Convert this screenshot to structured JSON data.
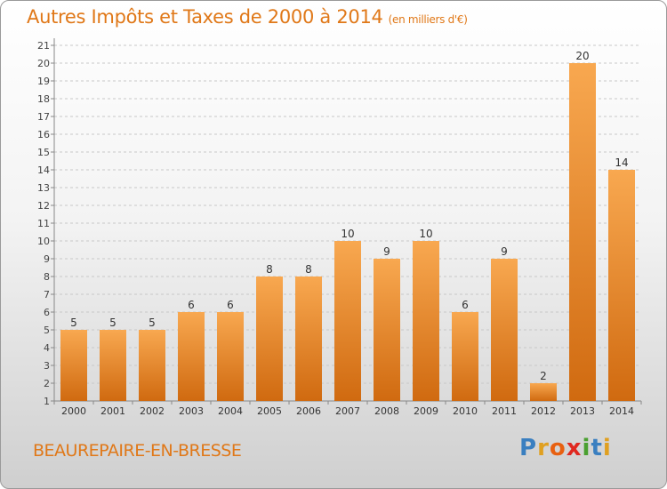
{
  "chart_data": {
    "type": "bar",
    "title": "Autres Impôts et Taxes de 2000 à 2014",
    "subtitle": "(en milliers d'€)",
    "categories": [
      "2000",
      "2001",
      "2002",
      "2003",
      "2004",
      "2005",
      "2006",
      "2007",
      "2008",
      "2009",
      "2010",
      "2011",
      "2012",
      "2013",
      "2014"
    ],
    "values": [
      5,
      5,
      5,
      6,
      6,
      8,
      8,
      10,
      9,
      10,
      6,
      9,
      2,
      20,
      14
    ],
    "ylim": [
      1,
      21
    ],
    "yticks": [
      1,
      2,
      3,
      4,
      5,
      6,
      7,
      8,
      9,
      10,
      11,
      12,
      13,
      14,
      15,
      16,
      17,
      18,
      19,
      20,
      21
    ],
    "xlabel": "",
    "ylabel": "",
    "grid": "horizontal dashed",
    "colors": {
      "bar_light": "#f8a850",
      "bar_dark": "#d06a10",
      "accent": "#e07818"
    }
  },
  "footer": {
    "commune": "BEAUREPAIRE-EN-BRESSE",
    "logo_letters": [
      "P",
      "r",
      "o",
      "x",
      "i",
      "t",
      "i"
    ],
    "logo_colors": [
      "#3a7fc0",
      "#e0a020",
      "#e86010",
      "#e02820",
      "#4aa030",
      "#3a7fc0",
      "#e0a020"
    ]
  }
}
